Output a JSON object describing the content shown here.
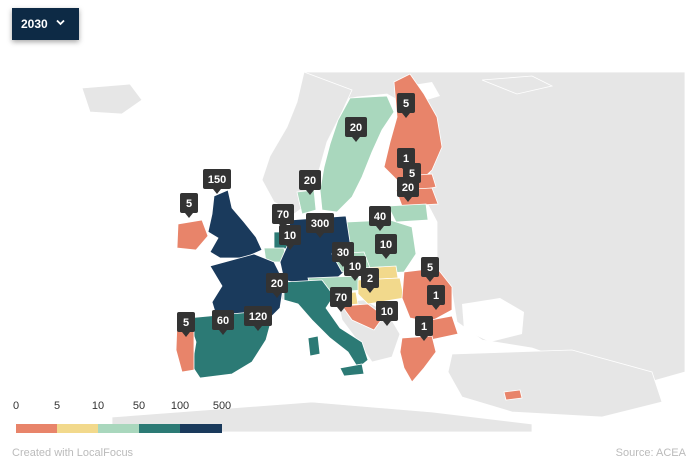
{
  "year_selector": {
    "value": "2030",
    "icon": "chevron-down-icon"
  },
  "colors": {
    "ocean": "#ffffff",
    "non_eu_land": "#e6e6e6",
    "border": "#ffffff",
    "pin_bg": "#333333",
    "pin_text": "#ffffff"
  },
  "legend": {
    "ticks": [
      "0",
      "5",
      "10",
      "50",
      "100",
      "500"
    ],
    "bins": [
      {
        "from": "0",
        "to": "5",
        "color": "#e8846a"
      },
      {
        "from": "5",
        "to": "10",
        "color": "#f2d98c"
      },
      {
        "from": "10",
        "to": "50",
        "color": "#a9d7bd"
      },
      {
        "from": "50",
        "to": "100",
        "color": "#2c7a75"
      },
      {
        "from": "100",
        "to": "500",
        "color": "#1a3a5c"
      }
    ]
  },
  "markers": [
    {
      "country": "Ireland",
      "value": "5"
    },
    {
      "country": "United Kingdom",
      "value": "150"
    },
    {
      "country": "Belgium",
      "value": "70"
    },
    {
      "country": "Netherlands",
      "value": "10"
    },
    {
      "country": "Germany",
      "value": "300"
    },
    {
      "country": "Denmark",
      "value": "20"
    },
    {
      "country": "Sweden",
      "value": "20"
    },
    {
      "country": "Finland north",
      "value": "5"
    },
    {
      "country": "Finland",
      "value": "1"
    },
    {
      "country": "Estonia",
      "value": "5"
    },
    {
      "country": "Latvia",
      "value": "20"
    },
    {
      "country": "Lithuania",
      "value": "40"
    },
    {
      "country": "Poland",
      "value": "10"
    },
    {
      "country": "Czechia",
      "value": "30"
    },
    {
      "country": "Slovakia",
      "value": "10"
    },
    {
      "country": "Hungary",
      "value": "2"
    },
    {
      "country": "Romania",
      "value": "5"
    },
    {
      "country": "Bulgaria",
      "value": "1"
    },
    {
      "country": "Greece",
      "value": "1"
    },
    {
      "country": "Croatia",
      "value": "10"
    },
    {
      "country": "Italy",
      "value": "70"
    },
    {
      "country": "France",
      "value": "20"
    },
    {
      "country": "Spain north",
      "value": "120"
    },
    {
      "country": "Spain",
      "value": "60"
    },
    {
      "country": "Portugal",
      "value": "5"
    }
  ],
  "footer": {
    "credit": "Created with LocalFocus",
    "source": "Source: ACEA"
  }
}
